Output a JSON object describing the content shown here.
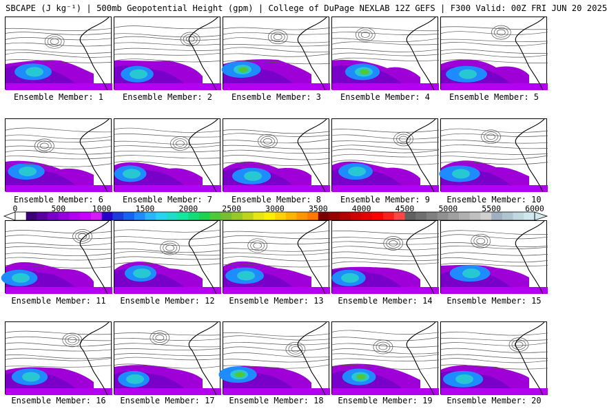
{
  "title": "SBCAPE (J kg⁻¹) | 500mb Geopotential Height (gpm) | College of DuPage NEXLAB 12Z GEFS | F300 Valid: 00Z FRI JUN 20 2025",
  "colorbar": {
    "tick_labels": [
      "0",
      "500",
      "1000",
      "1500",
      "2000",
      "2500",
      "3000",
      "3500",
      "4000",
      "4500",
      "5000",
      "5500",
      "6000"
    ],
    "colors": [
      "#ffffff",
      "#3c0078",
      "#5a00a0",
      "#7800c8",
      "#9600dc",
      "#b400f0",
      "#c800ff",
      "#d21ef5",
      "#2800c8",
      "#1e3cdc",
      "#1464f0",
      "#1e8cff",
      "#28b4ff",
      "#28d2f0",
      "#1edcc8",
      "#14e6a0",
      "#14dc78",
      "#1ed250",
      "#50c83c",
      "#78be32",
      "#96c828",
      "#bed21e",
      "#e6e614",
      "#fff000",
      "#ffd200",
      "#ffb400",
      "#ff9600",
      "#ff7800",
      "#7a0000",
      "#960000",
      "#b40000",
      "#d20000",
      "#e60000",
      "#ff0000",
      "#ff1e1e",
      "#ff4646",
      "#606060",
      "#707070",
      "#808080",
      "#909090",
      "#a0a0a0",
      "#b0b0b0",
      "#c0c0c0",
      "#d0d0d0",
      "#a0b0c0",
      "#b0c4d0",
      "#c0d8e0",
      "#d0e8ee"
    ]
  },
  "panels": [
    {
      "label": "Ensemble Member: 1"
    },
    {
      "label": "Ensemble Member: 2"
    },
    {
      "label": "Ensemble Member: 3"
    },
    {
      "label": "Ensemble Member: 4"
    },
    {
      "label": "Ensemble Member: 5"
    },
    {
      "label": "Ensemble Member: 6"
    },
    {
      "label": "Ensemble Member: 7"
    },
    {
      "label": "Ensemble Member: 8"
    },
    {
      "label": "Ensemble Member: 9"
    },
    {
      "label": "Ensemble Member: 10"
    },
    {
      "label": "Ensemble Member: 11"
    },
    {
      "label": "Ensemble Member: 12"
    },
    {
      "label": "Ensemble Member: 13"
    },
    {
      "label": "Ensemble Member: 14"
    },
    {
      "label": "Ensemble Member: 15"
    },
    {
      "label": "Ensemble Member: 16"
    },
    {
      "label": "Ensemble Member: 17"
    },
    {
      "label": "Ensemble Member: 18"
    },
    {
      "label": "Ensemble Member: 19"
    },
    {
      "label": "Ensemble Member: 20"
    }
  ]
}
